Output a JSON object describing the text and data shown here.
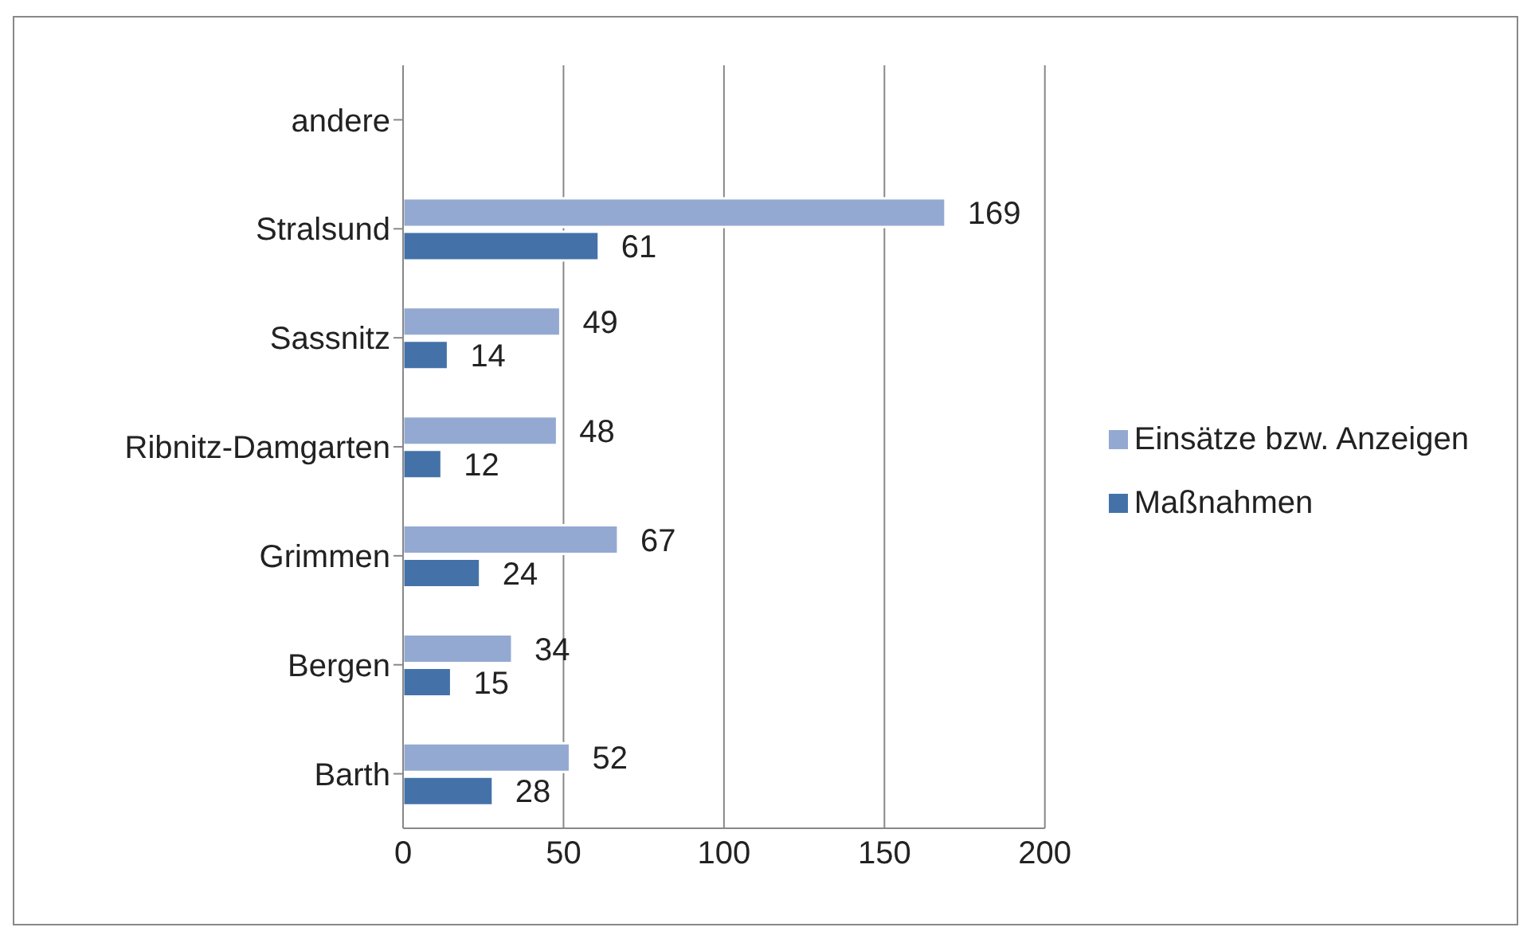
{
  "chart_data": {
    "type": "bar",
    "orientation": "horizontal",
    "categories": [
      "andere",
      "Stralsund",
      "Sassnitz",
      "Ribnitz-Damgarten",
      "Grimmen",
      "Bergen",
      "Barth"
    ],
    "series": [
      {
        "name": "Einsätze bzw. Anzeigen",
        "color": "#94a9d1",
        "values": [
          null,
          169,
          49,
          48,
          67,
          34,
          52
        ]
      },
      {
        "name": "Maßnahmen",
        "color": "#4472a8",
        "values": [
          null,
          61,
          14,
          12,
          24,
          15,
          28
        ]
      }
    ],
    "xlim": [
      0,
      200
    ],
    "xticks": [
      0,
      50,
      100,
      150,
      200
    ],
    "grid": "x",
    "legend": "right",
    "data_labels": true
  }
}
